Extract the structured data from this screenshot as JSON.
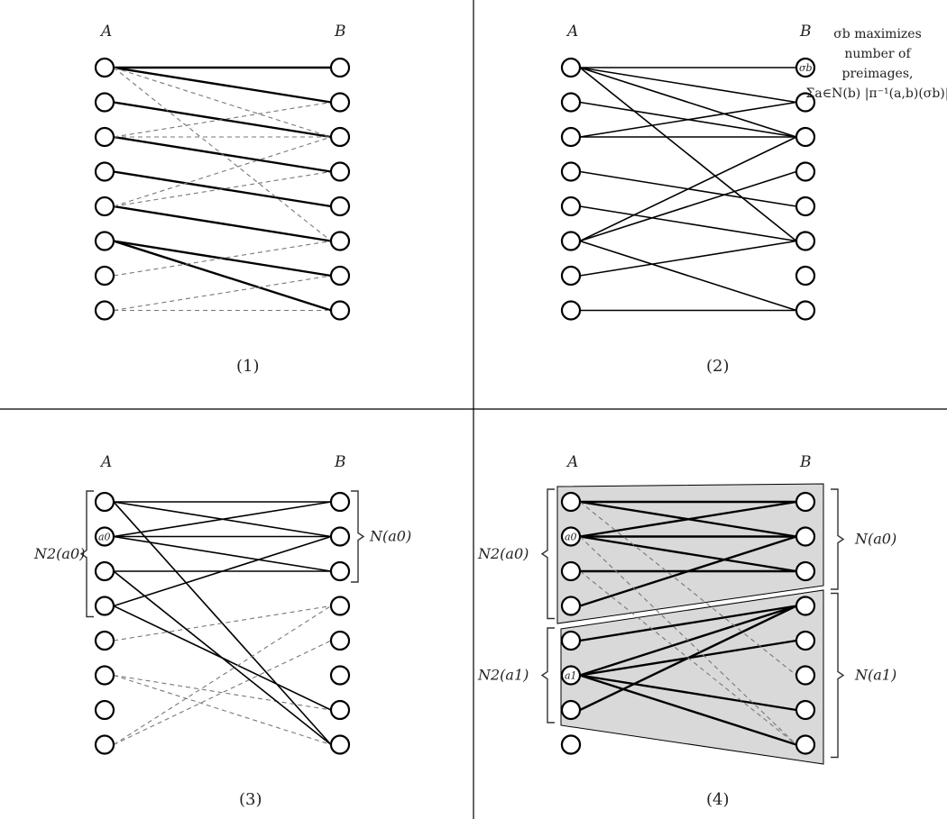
{
  "panels": [
    {
      "id": "1",
      "caption": "(1)",
      "label_a": "A",
      "label_b": "B",
      "b_annotation": null,
      "edges": [
        {
          "a": 0,
          "b": 0,
          "style": "bold"
        },
        {
          "a": 0,
          "b": 1,
          "style": "bold"
        },
        {
          "a": 1,
          "b": 2,
          "style": "bold"
        },
        {
          "a": 2,
          "b": 3,
          "style": "bold"
        },
        {
          "a": 3,
          "b": 4,
          "style": "bold"
        },
        {
          "a": 4,
          "b": 5,
          "style": "bold"
        },
        {
          "a": 5,
          "b": 6,
          "style": "bold"
        },
        {
          "a": 5,
          "b": 7,
          "style": "bold"
        },
        {
          "a": 0,
          "b": 2,
          "style": "dash"
        },
        {
          "a": 0,
          "b": 5,
          "style": "dash"
        },
        {
          "a": 2,
          "b": 1,
          "style": "dash"
        },
        {
          "a": 2,
          "b": 2,
          "style": "dash"
        },
        {
          "a": 4,
          "b": 2,
          "style": "dash"
        },
        {
          "a": 4,
          "b": 3,
          "style": "dash"
        },
        {
          "a": 6,
          "b": 5,
          "style": "dash"
        },
        {
          "a": 7,
          "b": 6,
          "style": "dash"
        },
        {
          "a": 7,
          "b": 7,
          "style": "dash"
        }
      ]
    },
    {
      "id": "2",
      "caption": "(2)",
      "label_a": "A",
      "label_b": "B",
      "b_annotation": {
        "node_label": "σb",
        "line1": "σb maximizes",
        "line2": "number of",
        "line3": "preimages,",
        "line4": "Σa∈N(b) |π⁻¹(a,b)(σb)|"
      },
      "edges": [
        {
          "a": 0,
          "b": 0,
          "style": "solid"
        },
        {
          "a": 0,
          "b": 1,
          "style": "solid"
        },
        {
          "a": 0,
          "b": 2,
          "style": "solid"
        },
        {
          "a": 0,
          "b": 5,
          "style": "solid"
        },
        {
          "a": 1,
          "b": 2,
          "style": "solid"
        },
        {
          "a": 2,
          "b": 1,
          "style": "solid"
        },
        {
          "a": 2,
          "b": 2,
          "style": "solid"
        },
        {
          "a": 3,
          "b": 4,
          "style": "solid"
        },
        {
          "a": 4,
          "b": 5,
          "style": "solid"
        },
        {
          "a": 5,
          "b": 2,
          "style": "solid"
        },
        {
          "a": 5,
          "b": 3,
          "style": "solid"
        },
        {
          "a": 5,
          "b": 7,
          "style": "solid"
        },
        {
          "a": 6,
          "b": 5,
          "style": "solid"
        },
        {
          "a": 7,
          "b": 7,
          "style": "solid"
        }
      ]
    },
    {
      "id": "3",
      "caption": "(3)",
      "label_a": "A",
      "label_b": "B",
      "special_a": [
        {
          "index": 1,
          "label": "a0"
        }
      ],
      "left_brace": {
        "label": "N2(a0)"
      },
      "right_brace": {
        "label": "N(a0)"
      },
      "edges": [
        {
          "a": 0,
          "b": 0,
          "style": "solid"
        },
        {
          "a": 0,
          "b": 1,
          "style": "solid"
        },
        {
          "a": 0,
          "b": 7,
          "style": "solid"
        },
        {
          "a": 1,
          "b": 0,
          "style": "solid"
        },
        {
          "a": 1,
          "b": 1,
          "style": "solid"
        },
        {
          "a": 1,
          "b": 2,
          "style": "solid"
        },
        {
          "a": 2,
          "b": 2,
          "style": "solid"
        },
        {
          "a": 3,
          "b": 1,
          "style": "solid"
        },
        {
          "a": 3,
          "b": 6,
          "style": "solid"
        },
        {
          "a": 4,
          "b": 3,
          "style": "dash"
        },
        {
          "a": 5,
          "b": 6,
          "style": "dash"
        },
        {
          "a": 5,
          "b": 7,
          "style": "dash"
        },
        {
          "a": 7,
          "b": 3,
          "style": "dash"
        },
        {
          "a": 7,
          "b": 4,
          "style": "dash"
        },
        {
          "a": 2,
          "b": 7,
          "style": "solid"
        }
      ]
    },
    {
      "id": "4",
      "caption": "(4)",
      "label_a": "A",
      "label_b": "B",
      "special_a": [
        {
          "index": 1,
          "label": "a0"
        },
        {
          "index": 5,
          "label": "a1"
        }
      ],
      "left_brace_top": {
        "label": "N2(a0)"
      },
      "left_brace_bottom": {
        "label": "N2(a1)"
      },
      "right_brace_top": {
        "label": "N(a0)"
      },
      "right_brace_bottom": {
        "label": "N(a1)"
      },
      "edges": [
        {
          "a": 0,
          "b": 0,
          "style": "bold"
        },
        {
          "a": 0,
          "b": 1,
          "style": "bold"
        },
        {
          "a": 1,
          "b": 0,
          "style": "bold"
        },
        {
          "a": 1,
          "b": 1,
          "style": "bold"
        },
        {
          "a": 1,
          "b": 2,
          "style": "bold"
        },
        {
          "a": 2,
          "b": 2,
          "style": "bold"
        },
        {
          "a": 3,
          "b": 1,
          "style": "bold"
        },
        {
          "a": 4,
          "b": 3,
          "style": "bold"
        },
        {
          "a": 5,
          "b": 3,
          "style": "bold"
        },
        {
          "a": 5,
          "b": 4,
          "style": "bold"
        },
        {
          "a": 5,
          "b": 6,
          "style": "bold"
        },
        {
          "a": 5,
          "b": 7,
          "style": "bold"
        },
        {
          "a": 6,
          "b": 3,
          "style": "bold"
        },
        {
          "a": 0,
          "b": 5,
          "style": "dash"
        },
        {
          "a": 2,
          "b": 7,
          "style": "dash"
        },
        {
          "a": 1,
          "b": 7,
          "style": "dash"
        }
      ]
    }
  ]
}
